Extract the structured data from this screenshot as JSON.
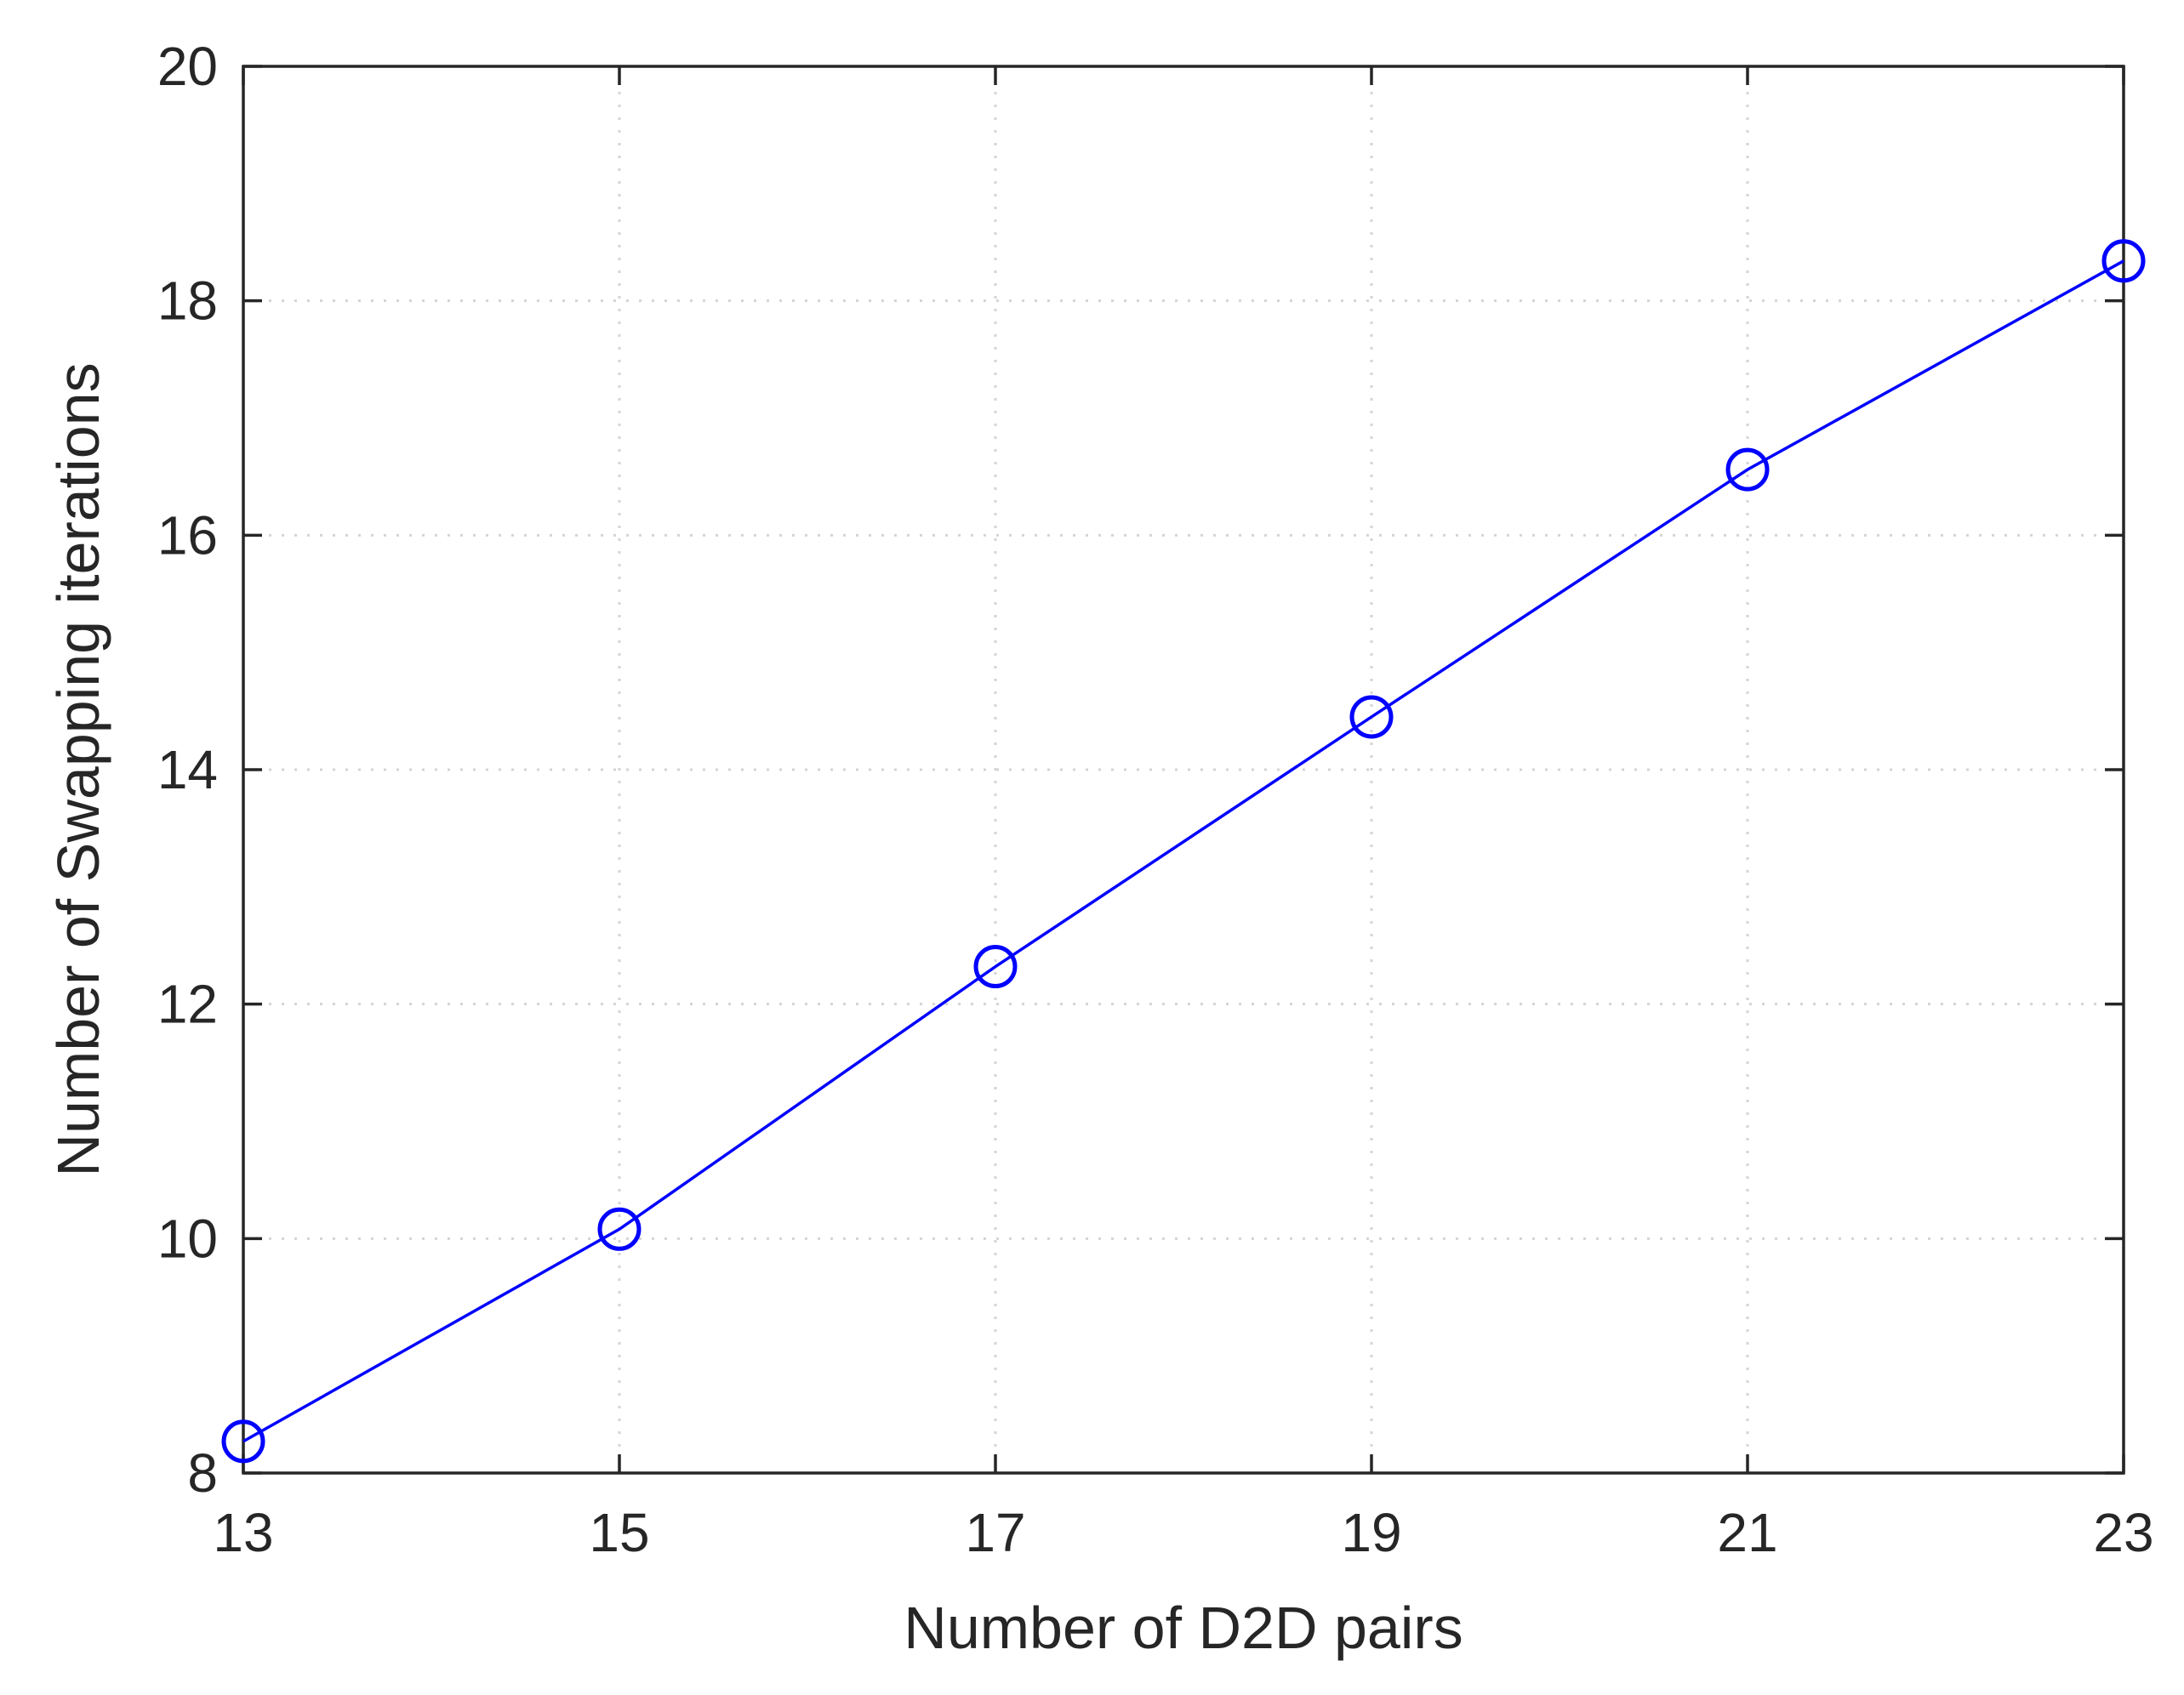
{
  "chart_data": {
    "type": "line",
    "title": "",
    "xlabel": "Number of D2D pairs",
    "ylabel": "Number of Swapping iterations",
    "xlim": [
      13,
      23
    ],
    "ylim": [
      8,
      20
    ],
    "xticks": [
      13,
      15,
      17,
      19,
      21,
      23
    ],
    "yticks": [
      8,
      10,
      12,
      14,
      16,
      18,
      20
    ],
    "grid": true,
    "series": [
      {
        "color": "#0000ff",
        "marker": "circle",
        "x": [
          13,
          15,
          17,
          19,
          21,
          23
        ],
        "y": [
          8.27,
          10.08,
          12.32,
          14.45,
          16.56,
          18.34
        ]
      }
    ]
  }
}
